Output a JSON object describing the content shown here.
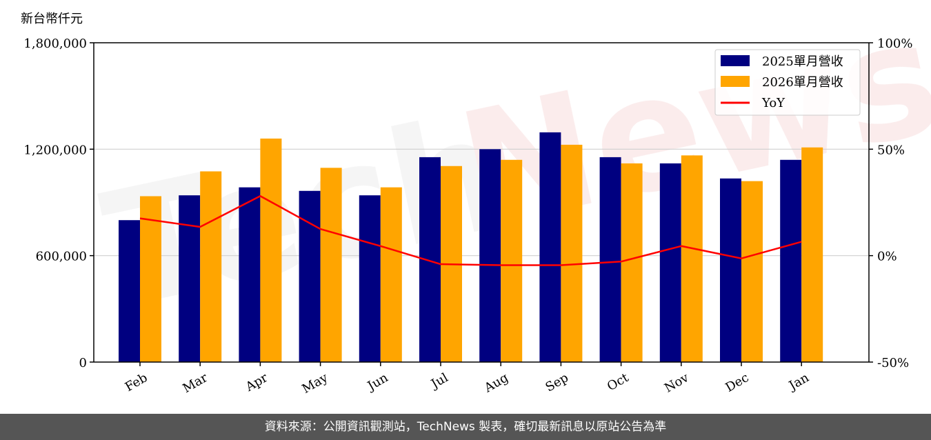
{
  "chart_data": {
    "type": "bar",
    "unit_label": "新台幣仟元",
    "categories": [
      "Feb",
      "Mar",
      "Apr",
      "May",
      "Jun",
      "Jul",
      "Aug",
      "Sep",
      "Oct",
      "Nov",
      "Dec",
      "Jan"
    ],
    "series": [
      {
        "name": "2025單月營收",
        "color": "#000080",
        "values": [
          800000,
          940000,
          985000,
          965000,
          940000,
          1155000,
          1200000,
          1295000,
          1155000,
          1120000,
          1035000,
          1140000
        ]
      },
      {
        "name": "2026單月營收",
        "color": "#FFA500",
        "values": [
          935000,
          1075000,
          1260000,
          1095000,
          985000,
          1105000,
          1140000,
          1225000,
          1120000,
          1165000,
          1020000,
          1210000
        ]
      }
    ],
    "line_series": {
      "name": "YoY",
      "color": "#FF0000",
      "values": [
        17.5,
        13.5,
        28,
        12.5,
        4.5,
        -4,
        -4.5,
        -4.5,
        -2.8,
        4.5,
        -1.3,
        6.5
      ]
    },
    "y_left": {
      "lim": [
        0,
        1800000
      ],
      "ticks": [
        0,
        600000,
        1200000,
        1800000
      ],
      "tick_labels": [
        "0",
        "600,000",
        "1,200,000",
        "1,800,000"
      ]
    },
    "y_right": {
      "lim": [
        -50,
        100
      ],
      "ticks": [
        -50,
        0,
        50,
        100
      ],
      "tick_labels": [
        "-50%",
        "0%",
        "50%",
        "100%"
      ]
    },
    "grid": "horizontal",
    "legend_position": "top-right"
  },
  "watermark": "TechNews",
  "footer": {
    "text": "資料來源：公開資訊觀測站，TechNews 製表，確切最新訊息以原站公告為準"
  }
}
